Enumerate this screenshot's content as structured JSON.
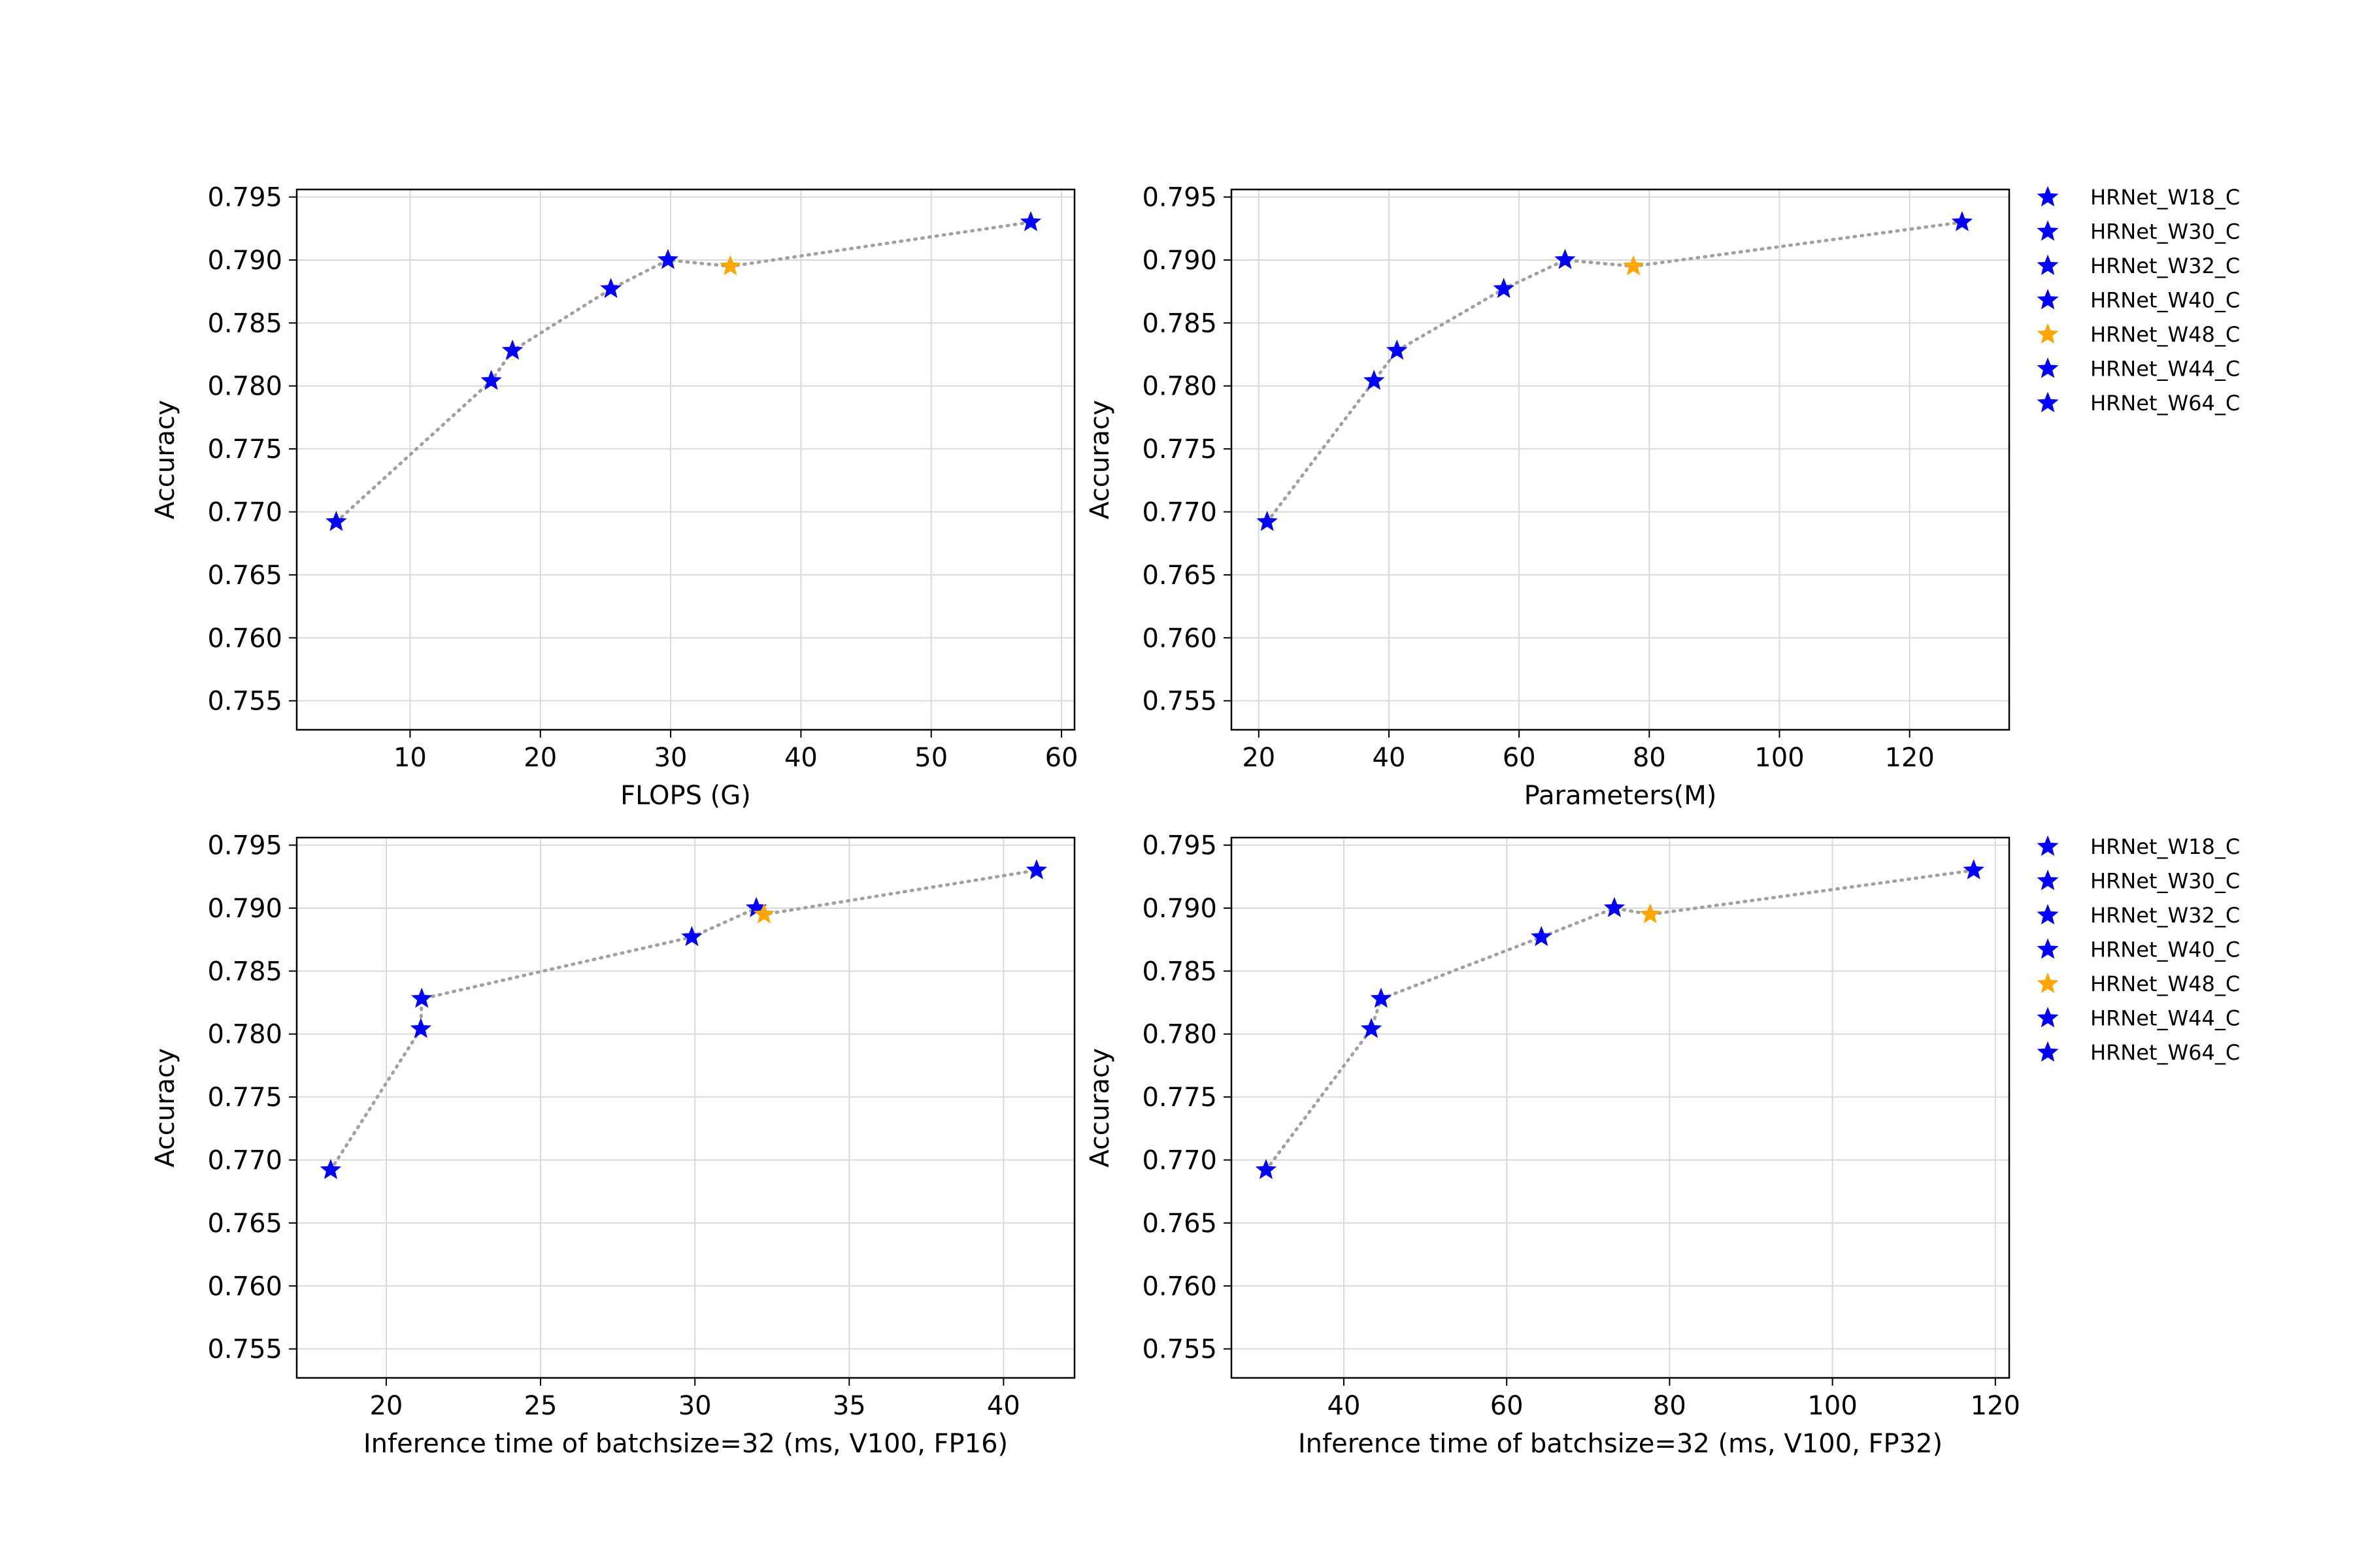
{
  "colors": {
    "blue": "#0000ff",
    "orange": "#ffa500",
    "line": "#a0a0a0",
    "grid": "#d9d9d9"
  },
  "chart_data": [
    {
      "type": "scatter",
      "xlabel": "FLOPS (G)",
      "ylabel": "Accuracy",
      "xlim": [
        1.3,
        61.0
      ],
      "ylim": [
        0.7527,
        0.7956
      ],
      "xticks": [
        "10",
        "20",
        "30",
        "40",
        "50",
        "60"
      ],
      "yticks": [
        "0.755",
        "0.760",
        "0.765",
        "0.770",
        "0.775",
        "0.780",
        "0.785",
        "0.790",
        "0.795"
      ],
      "grid": true,
      "marker": "star",
      "line_style": "dotted",
      "points": [
        {
          "name": "HRNet_W18_C",
          "x": 4.33,
          "y": 0.7692,
          "color": "blue"
        },
        {
          "name": "HRNet_W30_C",
          "x": 16.23,
          "y": 0.7804,
          "color": "blue"
        },
        {
          "name": "HRNet_W32_C",
          "x": 17.86,
          "y": 0.7828,
          "color": "blue"
        },
        {
          "name": "HRNet_W40_C",
          "x": 25.41,
          "y": 0.7877,
          "color": "blue"
        },
        {
          "name": "HRNet_W44_C",
          "x": 29.79,
          "y": 0.79,
          "color": "blue"
        },
        {
          "name": "HRNet_W48_C",
          "x": 34.58,
          "y": 0.7895,
          "color": "orange"
        },
        {
          "name": "HRNet_W64_C",
          "x": 57.64,
          "y": 0.793,
          "color": "blue"
        }
      ]
    },
    {
      "type": "scatter",
      "xlabel": "Parameters(M)",
      "ylabel": "Accuracy",
      "xlim": [
        15.8,
        135.3
      ],
      "ylim": [
        0.7527,
        0.7956
      ],
      "xticks": [
        "20",
        "40",
        "60",
        "80",
        "100",
        "120"
      ],
      "yticks": [
        "0.755",
        "0.760",
        "0.765",
        "0.770",
        "0.775",
        "0.780",
        "0.785",
        "0.790",
        "0.795"
      ],
      "grid": true,
      "marker": "star",
      "line_style": "dotted",
      "points": [
        {
          "name": "HRNet_W18_C",
          "x": 21.29,
          "y": 0.7692,
          "color": "blue"
        },
        {
          "name": "HRNet_W30_C",
          "x": 37.71,
          "y": 0.7804,
          "color": "blue"
        },
        {
          "name": "HRNet_W32_C",
          "x": 41.23,
          "y": 0.7828,
          "color": "blue"
        },
        {
          "name": "HRNet_W40_C",
          "x": 57.64,
          "y": 0.7877,
          "color": "blue"
        },
        {
          "name": "HRNet_W44_C",
          "x": 67.06,
          "y": 0.79,
          "color": "blue"
        },
        {
          "name": "HRNet_W48_C",
          "x": 77.57,
          "y": 0.7895,
          "color": "orange"
        },
        {
          "name": "HRNet_W64_C",
          "x": 128.06,
          "y": 0.793,
          "color": "blue"
        }
      ]
    },
    {
      "type": "scatter",
      "xlabel": "Inference time of batchsize=32 (ms, V100, FP16)",
      "ylabel": "Accuracy",
      "xlim": [
        17.1,
        42.3
      ],
      "ylim": [
        0.7527,
        0.7956
      ],
      "xticks": [
        "20",
        "25",
        "30",
        "35",
        "40"
      ],
      "yticks": [
        "0.755",
        "0.760",
        "0.765",
        "0.770",
        "0.775",
        "0.780",
        "0.785",
        "0.790",
        "0.795"
      ],
      "grid": true,
      "marker": "star",
      "line_style": "dotted",
      "points": [
        {
          "name": "HRNet_W18_C",
          "x": 18.2,
          "y": 0.7692,
          "color": "blue"
        },
        {
          "name": "HRNet_W30_C",
          "x": 21.12,
          "y": 0.7804,
          "color": "blue"
        },
        {
          "name": "HRNet_W32_C",
          "x": 21.15,
          "y": 0.7828,
          "color": "blue"
        },
        {
          "name": "HRNet_W40_C",
          "x": 29.9,
          "y": 0.7877,
          "color": "blue"
        },
        {
          "name": "HRNet_W44_C",
          "x": 31.99,
          "y": 0.79,
          "color": "blue"
        },
        {
          "name": "HRNet_W48_C",
          "x": 32.24,
          "y": 0.7895,
          "color": "orange"
        },
        {
          "name": "HRNet_W64_C",
          "x": 41.07,
          "y": 0.793,
          "color": "blue"
        }
      ]
    },
    {
      "type": "scatter",
      "xlabel": "Inference time of batchsize=32 (ms, V100, FP32)",
      "ylabel": "Accuracy",
      "xlim": [
        26.2,
        121.7
      ],
      "ylim": [
        0.7527,
        0.7956
      ],
      "xticks": [
        "40",
        "60",
        "80",
        "100",
        "120"
      ],
      "yticks": [
        "0.755",
        "0.760",
        "0.765",
        "0.770",
        "0.775",
        "0.780",
        "0.785",
        "0.790",
        "0.795"
      ],
      "grid": true,
      "marker": "star",
      "line_style": "dotted",
      "points": [
        {
          "name": "HRNet_W18_C",
          "x": 30.45,
          "y": 0.7692,
          "color": "blue"
        },
        {
          "name": "HRNet_W30_C",
          "x": 43.38,
          "y": 0.7804,
          "color": "blue"
        },
        {
          "name": "HRNet_W32_C",
          "x": 44.57,
          "y": 0.7828,
          "color": "blue"
        },
        {
          "name": "HRNet_W40_C",
          "x": 64.26,
          "y": 0.7877,
          "color": "blue"
        },
        {
          "name": "HRNet_W44_C",
          "x": 73.22,
          "y": 0.79,
          "color": "blue"
        },
        {
          "name": "HRNet_W48_C",
          "x": 77.62,
          "y": 0.7895,
          "color": "orange"
        },
        {
          "name": "HRNet_W64_C",
          "x": 117.34,
          "y": 0.793,
          "color": "blue"
        }
      ]
    }
  ],
  "legends": [
    {
      "position": "right of top-right plot",
      "entries": [
        {
          "label": "HRNet_W18_C",
          "color": "blue"
        },
        {
          "label": "HRNet_W30_C",
          "color": "blue"
        },
        {
          "label": "HRNet_W32_C",
          "color": "blue"
        },
        {
          "label": "HRNet_W40_C",
          "color": "blue"
        },
        {
          "label": "HRNet_W48_C",
          "color": "orange"
        },
        {
          "label": "HRNet_W44_C",
          "color": "blue"
        },
        {
          "label": "HRNet_W64_C",
          "color": "blue"
        }
      ]
    },
    {
      "position": "right of bottom-right plot",
      "entries": [
        {
          "label": "HRNet_W18_C",
          "color": "blue"
        },
        {
          "label": "HRNet_W30_C",
          "color": "blue"
        },
        {
          "label": "HRNet_W32_C",
          "color": "blue"
        },
        {
          "label": "HRNet_W40_C",
          "color": "blue"
        },
        {
          "label": "HRNet_W48_C",
          "color": "orange"
        },
        {
          "label": "HRNet_W44_C",
          "color": "blue"
        },
        {
          "label": "HRNet_W64_C",
          "color": "blue"
        }
      ]
    }
  ]
}
